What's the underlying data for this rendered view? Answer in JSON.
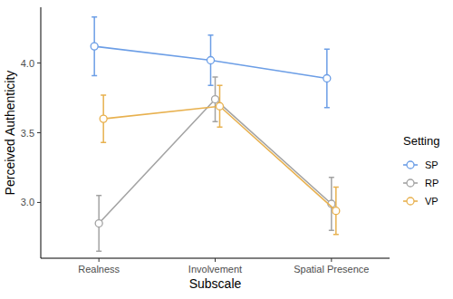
{
  "chart_data": {
    "type": "line",
    "x_label": "Subscale",
    "y_label": "Perceived Authenticity",
    "legend_title": "Setting",
    "legend": "right",
    "categories": [
      "Realness",
      "Involvement",
      "Spatial Presence"
    ],
    "series": [
      {
        "name": "SP",
        "color": "#6c9ee6",
        "marker": "circle",
        "line_style": "solid",
        "values": [
          4.12,
          4.02,
          3.89
        ],
        "errors": [
          0.21,
          0.18,
          0.21
        ]
      },
      {
        "name": "RP",
        "color": "#a3a3a3",
        "marker": "circle",
        "line_style": "solid",
        "values": [
          2.85,
          3.74,
          2.99
        ],
        "errors": [
          0.2,
          0.16,
          0.19
        ]
      },
      {
        "name": "VP",
        "color": "#e8b14f",
        "marker": "circle",
        "line_style": "solid",
        "values": [
          3.6,
          3.69,
          2.94
        ],
        "errors": [
          0.17,
          0.15,
          0.17
        ]
      }
    ],
    "ylim": [
      2.6,
      4.4
    ],
    "yticks": [
      {
        "value": 3,
        "label": "3.0"
      },
      {
        "value": 3.5,
        "label": "3.5"
      },
      {
        "value": 4,
        "label": "4.0"
      }
    ],
    "grid": false
  }
}
